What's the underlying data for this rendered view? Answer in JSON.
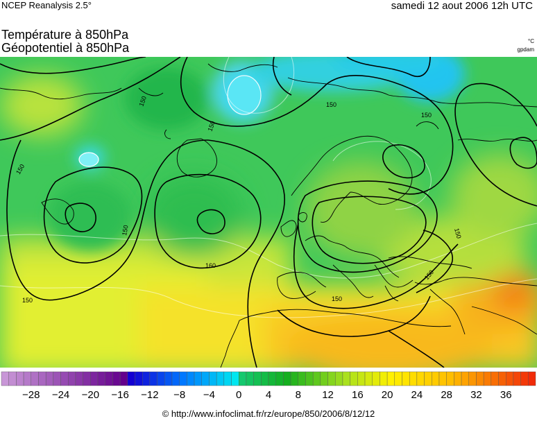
{
  "header": {
    "source": "NCEP Reanalysis 2.5°",
    "datetime": "samedi 12 aout 2006 12h UTC",
    "title_line1": "Température à 850hPa",
    "title_line2": "Géopotentiel à 850hPa",
    "unit_temp": "°C",
    "unit_geo": "gpdam"
  },
  "map": {
    "contour_labels": [
      {
        "id": "c150-nw",
        "text": "150"
      },
      {
        "id": "c150-n",
        "text": "150"
      },
      {
        "id": "c150-ne",
        "text": "150"
      },
      {
        "id": "c150-w",
        "text": "150"
      },
      {
        "id": "c150-c",
        "text": "150"
      },
      {
        "id": "c150-sw",
        "text": "150"
      },
      {
        "id": "c150-s",
        "text": "150"
      },
      {
        "id": "c150-se",
        "text": "150"
      },
      {
        "id": "c150-e",
        "text": "150"
      },
      {
        "id": "c150-mid",
        "text": "150"
      },
      {
        "id": "c160",
        "text": "160"
      }
    ]
  },
  "colorbar": {
    "tick_labels": [
      "−28",
      "−24",
      "−20",
      "−16",
      "−12",
      "−8",
      "−4",
      "0",
      "4",
      "8",
      "12",
      "16",
      "20",
      "24",
      "28",
      "32",
      "36"
    ],
    "tick_values": [
      -28,
      -24,
      -20,
      -16,
      -12,
      -8,
      -4,
      0,
      4,
      8,
      12,
      16,
      20,
      24,
      28,
      32,
      36
    ],
    "min": -32,
    "max": 40,
    "step": 1
  },
  "footer": {
    "credit": "© http://www.infoclimat.fr/rz/europe/850/2006/8/12/12"
  }
}
